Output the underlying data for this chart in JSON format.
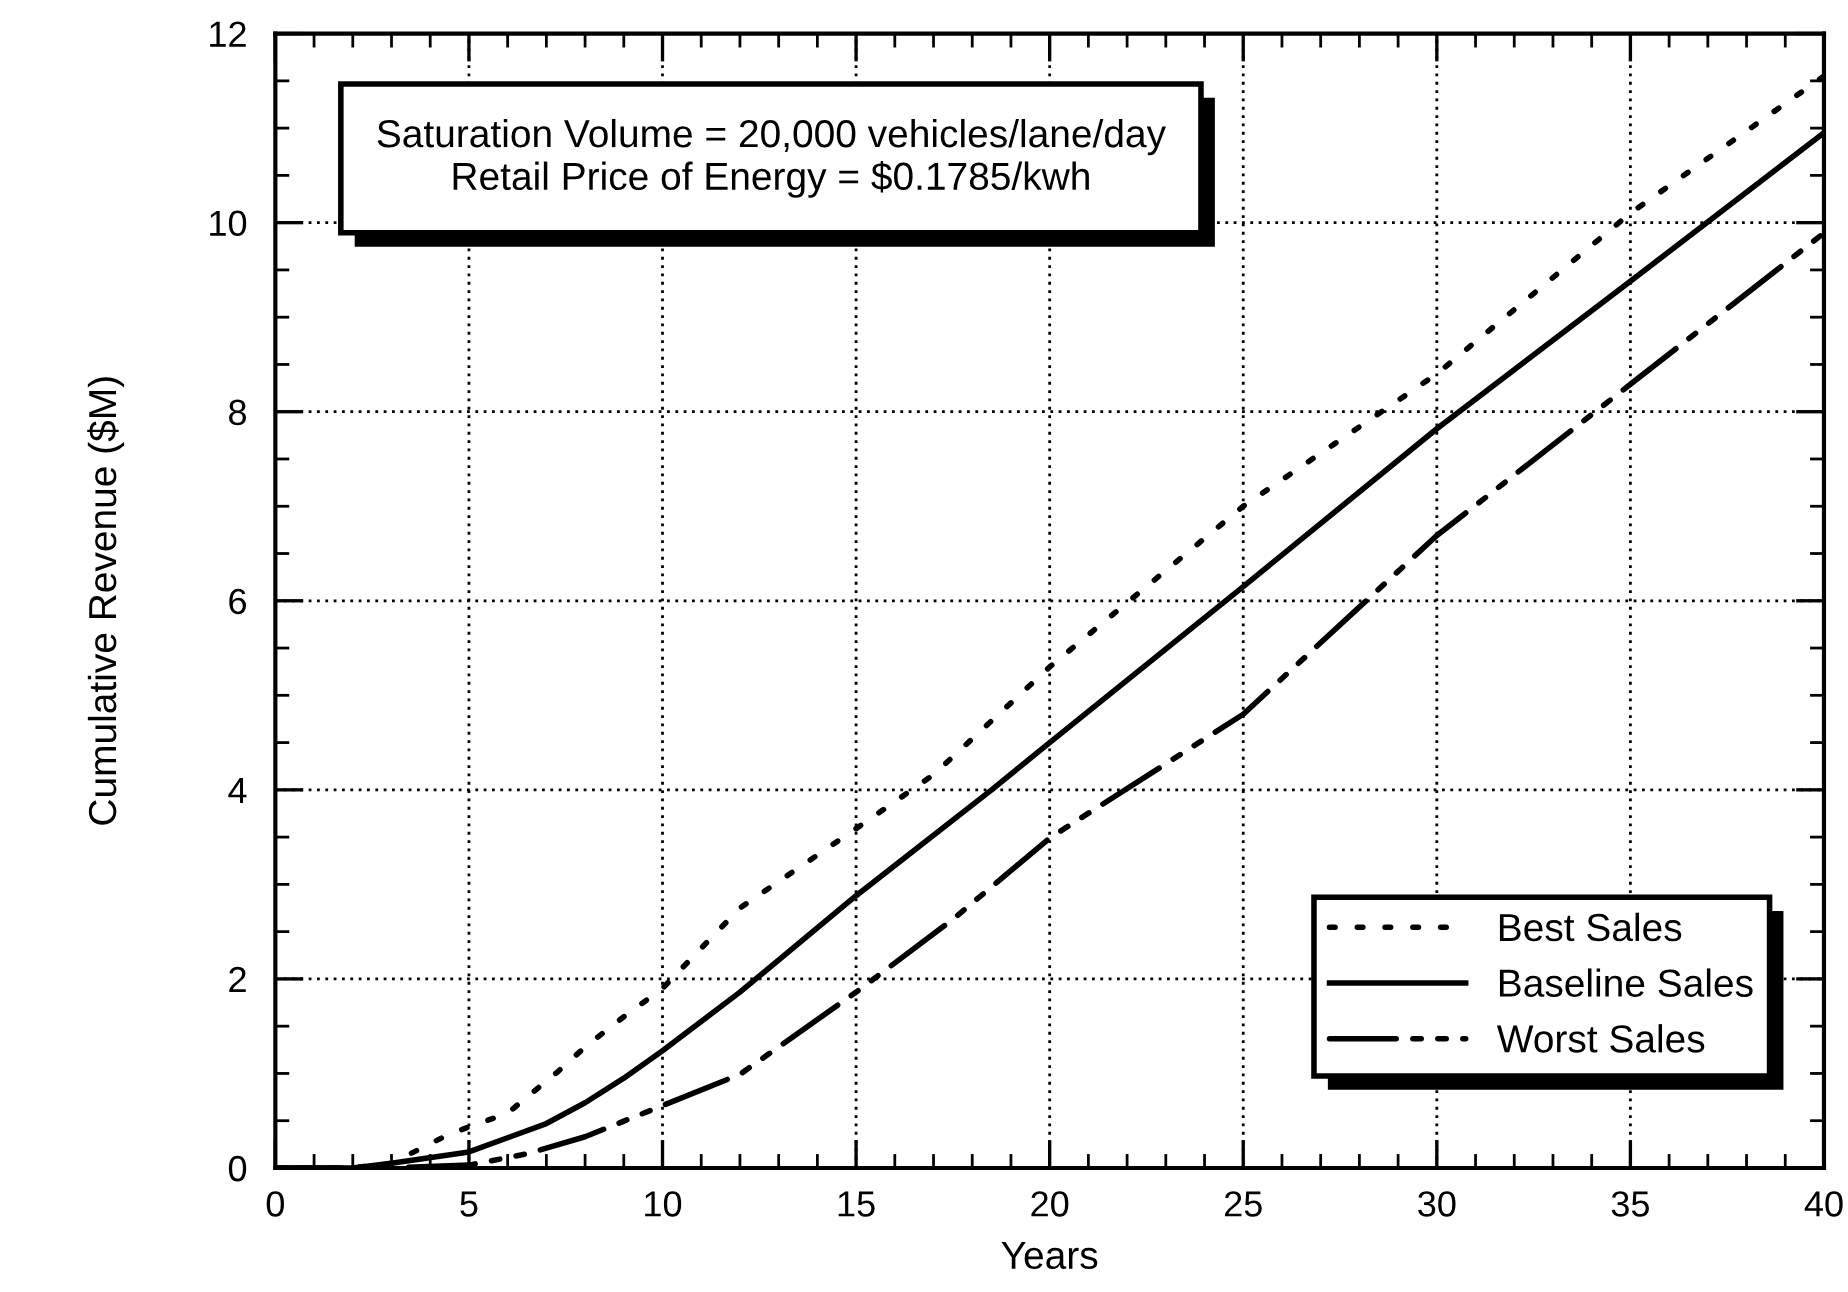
{
  "chart_data": {
    "type": "line",
    "xlabel": "Years",
    "ylabel": "Cumulative Revenue ($M)",
    "xlim": [
      0,
      40
    ],
    "xticks": [
      0,
      5,
      10,
      15,
      20,
      25,
      30,
      35,
      40
    ],
    "ylim": [
      0,
      12
    ],
    "yticks": [
      0,
      2,
      4,
      6,
      8,
      10,
      12
    ],
    "grid": true,
    "legend": "bottom right",
    "marker": "none",
    "annotations": [
      "Saturation Volume = 20,000 vehicles/lane/day\nRetail Price of Energy = $0.1785/kwh"
    ],
    "series": [
      {
        "name": "Best Sales",
        "color": "#000000",
        "line_style": "dotted",
        "x": [
          0,
          2,
          3,
          4.5,
          6,
          7.3,
          8,
          9,
          10,
          12,
          15,
          17,
          20,
          25,
          30,
          35,
          40
        ],
        "values": [
          0,
          0,
          0.05,
          0.36,
          0.58,
          1.02,
          1.28,
          1.6,
          1.9,
          2.75,
          3.59,
          4.16,
          5.3,
          7.0,
          8.4,
          10.1,
          11.55
        ]
      },
      {
        "name": "Baseline Sales",
        "color": "#000000",
        "line_style": "solid",
        "x": [
          0,
          2,
          3,
          5,
          7,
          8,
          9,
          10,
          12,
          15,
          18.5,
          20,
          25,
          30,
          35,
          40
        ],
        "values": [
          0,
          0,
          0.05,
          0.17,
          0.47,
          0.69,
          0.95,
          1.24,
          1.86,
          2.88,
          4.0,
          4.5,
          6.15,
          7.82,
          9.38,
          10.95
        ]
      },
      {
        "name": "Worst Sales",
        "color": "#000000",
        "line_style": "dashed",
        "x": [
          0,
          3,
          5,
          6.5,
          8,
          10,
          12,
          15,
          17.5,
          20,
          25,
          30,
          35,
          40
        ],
        "values": [
          0,
          0,
          0.03,
          0.15,
          0.33,
          0.66,
          0.99,
          1.86,
          2.63,
          3.49,
          4.8,
          6.69,
          8.29,
          9.89
        ]
      }
    ]
  }
}
